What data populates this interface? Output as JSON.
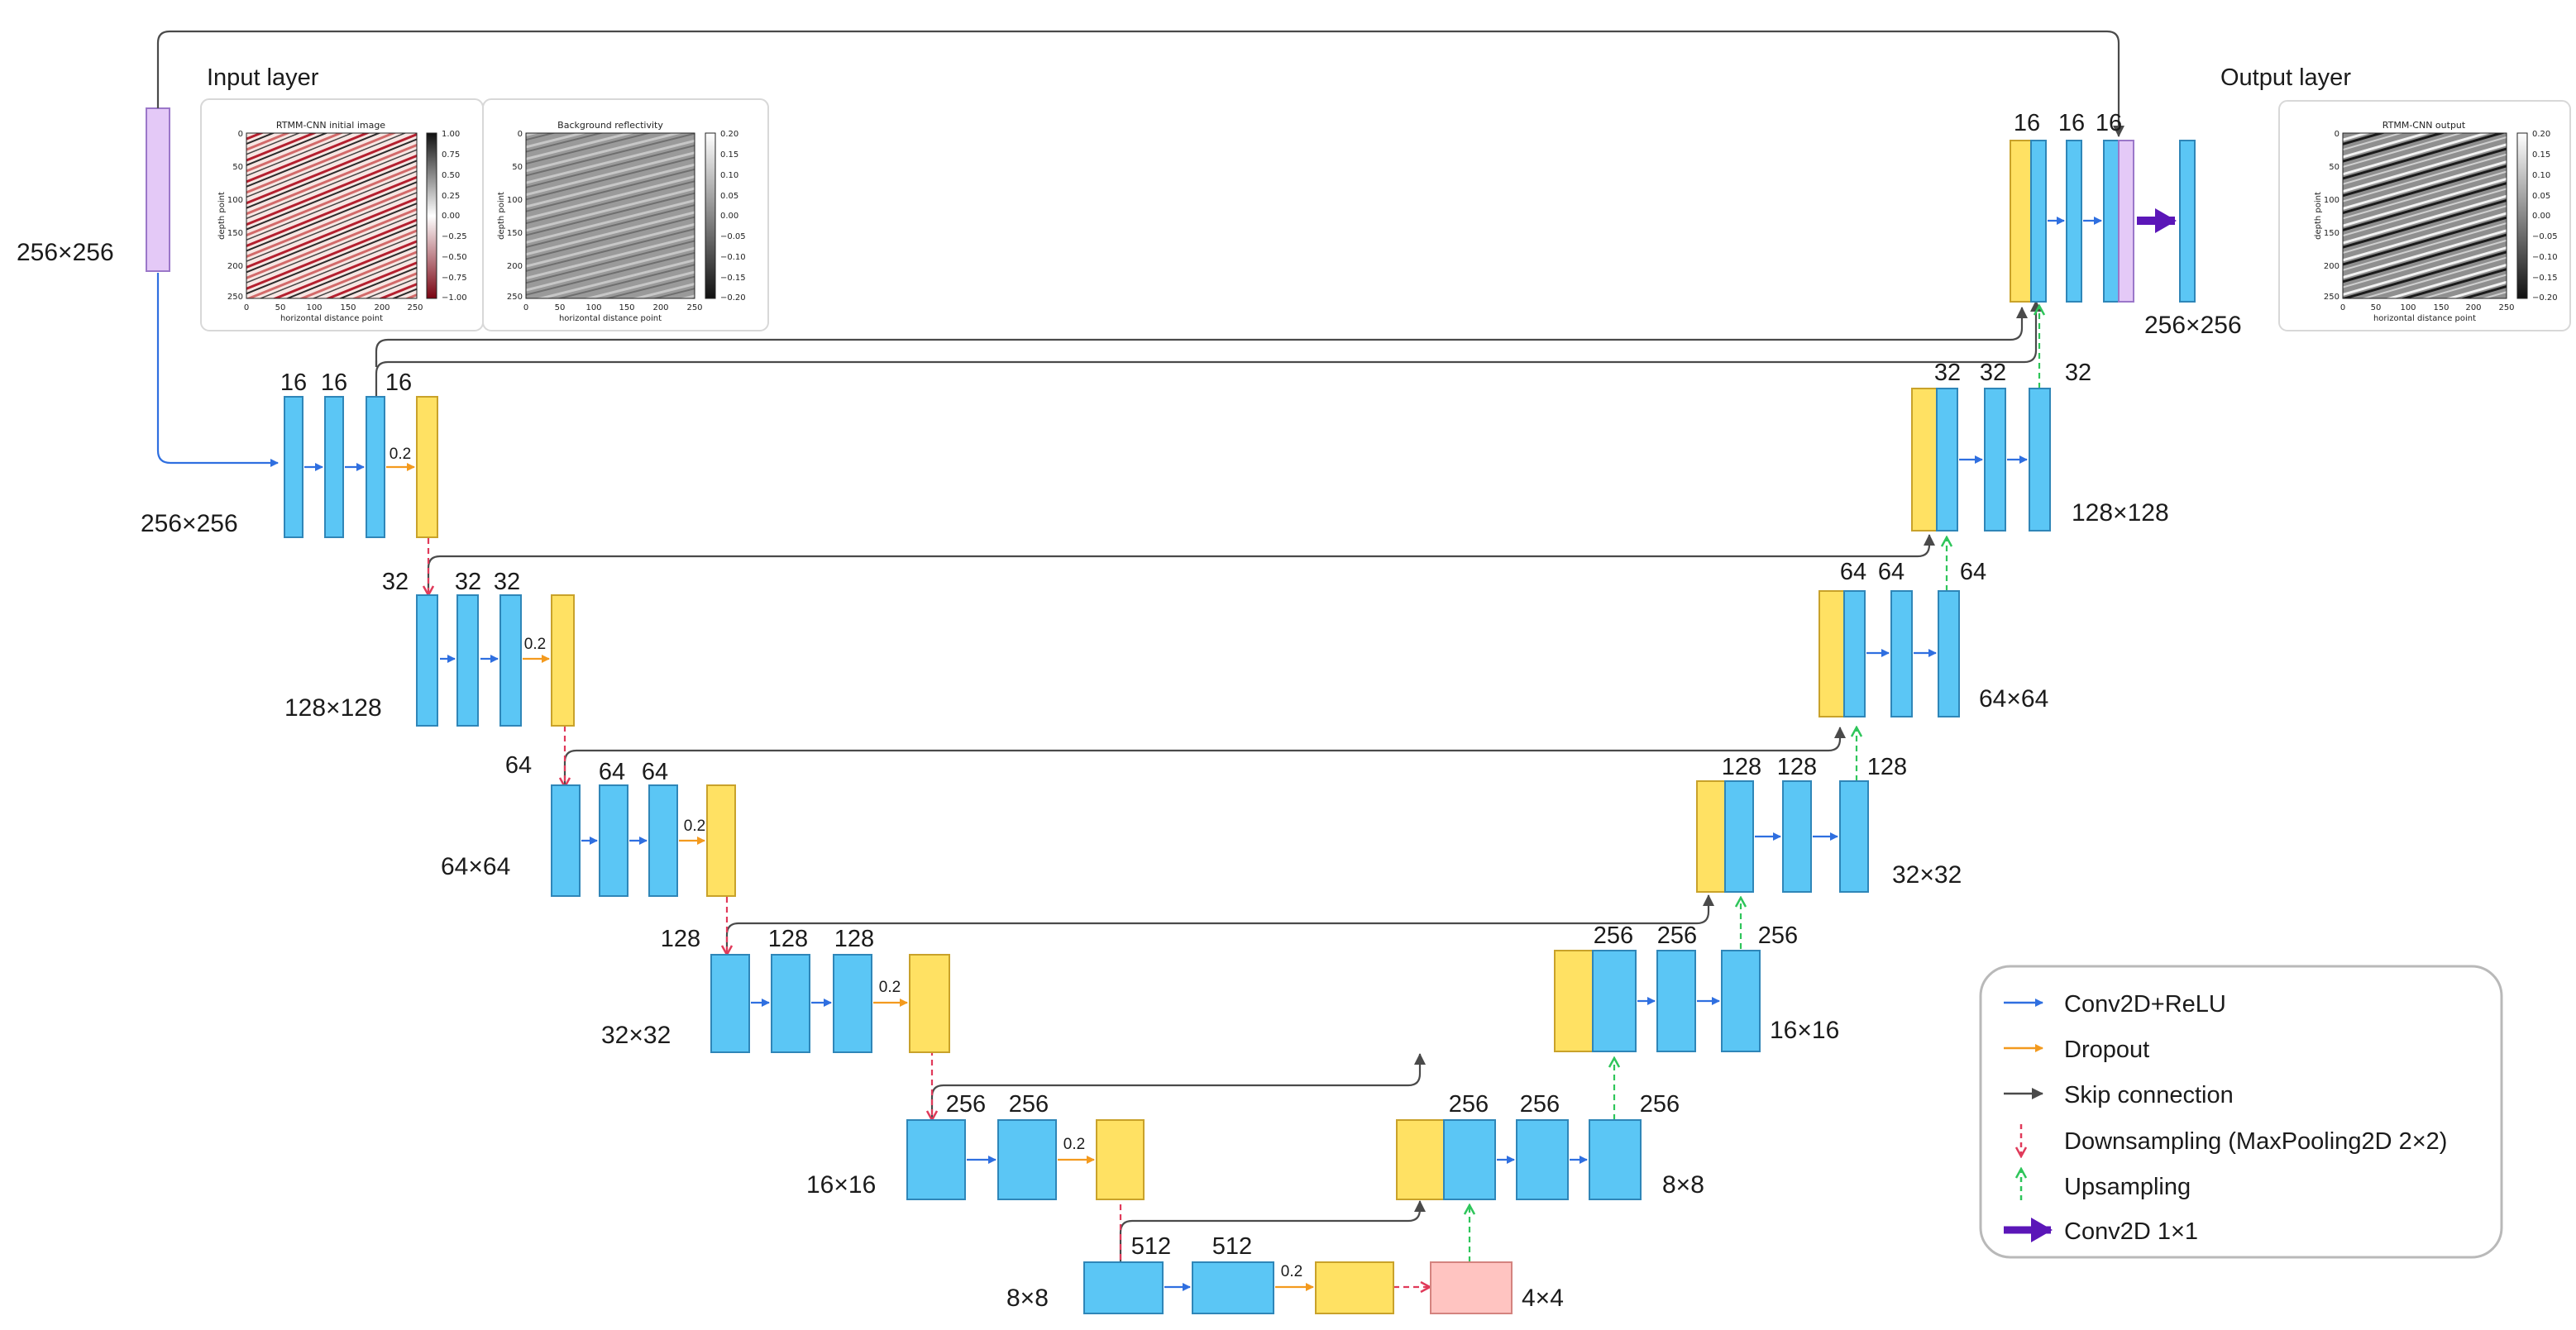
{
  "titles": {
    "input_layer": "Input layer",
    "output_layer": "Output layer"
  },
  "colors": {
    "conv": "#5BC6F5",
    "dropout_block": "#FFE163",
    "input_block": "#E4C9F7",
    "bottleneck_block": "#FFC4C1",
    "conv_arrow": "#2F6FE0",
    "dropout_arrow": "#F39A1E",
    "skip_arrow": "#4A4A4A",
    "down_arrow": "#E03A5A",
    "up_arrow": "#2EC55A",
    "conv1x1_arrow": "#5B16B8"
  },
  "dropout_rate": "0.2",
  "input_plots": [
    {
      "title": "RTMM-CNN initial image",
      "xlabel": "horizontal distance point",
      "ylabel": "depth point",
      "xticks": [
        "0",
        "50",
        "100",
        "150",
        "200",
        "250"
      ],
      "yticks": [
        "0",
        "50",
        "100",
        "150",
        "200",
        "250"
      ],
      "cbar_ticks": [
        "1.00",
        "0.75",
        "0.50",
        "0.25",
        "0.00",
        "−0.25",
        "−0.50",
        "−0.75",
        "−1.00"
      ]
    },
    {
      "title": "Background reflectivity",
      "xlabel": "horizontal distance point",
      "ylabel": "depth point",
      "xticks": [
        "0",
        "50",
        "100",
        "150",
        "200",
        "250"
      ],
      "yticks": [
        "0",
        "50",
        "100",
        "150",
        "200",
        "250"
      ],
      "cbar_ticks": [
        "0.20",
        "0.15",
        "0.10",
        "0.05",
        "0.00",
        "−0.05",
        "−0.10",
        "−0.15",
        "−0.20"
      ]
    }
  ],
  "output_plot": {
    "title": "RTMM-CNN output",
    "xlabel": "horizontal distance point",
    "ylabel": "depth point",
    "xticks": [
      "0",
      "50",
      "100",
      "150",
      "200",
      "250"
    ],
    "yticks": [
      "0",
      "50",
      "100",
      "150",
      "200",
      "250"
    ],
    "cbar_ticks": [
      "0.20",
      "0.15",
      "0.10",
      "0.05",
      "0.00",
      "−0.05",
      "−0.10",
      "−0.15",
      "−0.20"
    ]
  },
  "encoder": [
    {
      "channels": [
        "16",
        "16",
        "16"
      ],
      "size": "256×256"
    },
    {
      "channels": [
        "32",
        "32",
        "32"
      ],
      "size": "128×128"
    },
    {
      "channels": [
        "64",
        "64",
        "64"
      ],
      "size": "64×64"
    },
    {
      "channels": [
        "128",
        "128",
        "128"
      ],
      "size": "32×32"
    },
    {
      "channels": [
        "256",
        "256"
      ],
      "size": "16×16"
    }
  ],
  "bottleneck": {
    "channels": [
      "512",
      "512"
    ],
    "size_left": "8×8",
    "size_right": "4×4"
  },
  "decoder": [
    {
      "channels": [
        "256",
        "256",
        "256"
      ],
      "size": "8×8"
    },
    {
      "channels": [
        "256",
        "256",
        "256"
      ],
      "size": "16×16"
    },
    {
      "channels": [
        "128",
        "128",
        "128"
      ],
      "size": "32×32"
    },
    {
      "channels": [
        "64",
        "64",
        "64"
      ],
      "size": "64×64"
    },
    {
      "channels": [
        "32",
        "32",
        "32"
      ],
      "size": "128×128"
    },
    {
      "channels": [
        "16",
        "16",
        "16"
      ],
      "size": "256×256"
    }
  ],
  "input_size": "256×256",
  "legend": [
    {
      "label": "Conv2D+ReLU",
      "kind": "conv"
    },
    {
      "label": "Dropout",
      "kind": "dropout"
    },
    {
      "label": "Skip connection",
      "kind": "skip"
    },
    {
      "label": "Downsampling (MaxPooling2D 2×2)",
      "kind": "down"
    },
    {
      "label": "Upsampling",
      "kind": "up"
    },
    {
      "label": "Conv2D 1×1",
      "kind": "conv1x1"
    }
  ]
}
